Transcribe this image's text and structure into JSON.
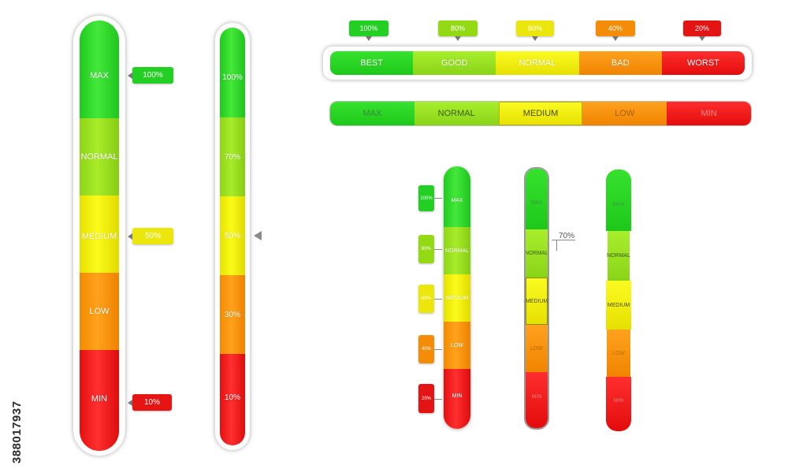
{
  "bar1": {
    "segments": [
      "MAX",
      "NORMAL",
      "MEDIUM",
      "LOW",
      "MIN"
    ],
    "tags": [
      "100%",
      "50%",
      "10%"
    ]
  },
  "bar2": {
    "segments": [
      "100%",
      "70%",
      "50%",
      "30%",
      "10%"
    ]
  },
  "hbar1": {
    "segments": [
      "BEST",
      "GOOD",
      "NORMAL",
      "BAD",
      "WORST"
    ],
    "tags": [
      "100%",
      "80%",
      "60%",
      "40%",
      "20%"
    ]
  },
  "hbar2": {
    "segments": [
      "MAX",
      "NORMAL",
      "MEDIUM",
      "LOW",
      "MIN"
    ]
  },
  "small1": {
    "segments": [
      "MAX",
      "NORMAL",
      "MEDIUM",
      "LOW",
      "MIN"
    ],
    "tags": [
      "100%",
      "80%",
      "60%",
      "40%",
      "20%"
    ]
  },
  "small2": {
    "segments": [
      "MAX",
      "NORMAL",
      "MEDIUM",
      "LOW",
      "MIN"
    ],
    "callout": "70%"
  },
  "small3": {
    "segments": [
      "MAX",
      "NORMAL",
      "MEDIUM",
      "LOW",
      "MIN"
    ]
  },
  "watermark_id": "388017937",
  "colors": {
    "green": "#22cc22",
    "light_green": "#99dd22",
    "yellow": "#f5f20a",
    "orange": "#fb9410",
    "red": "#ee1a1a"
  }
}
